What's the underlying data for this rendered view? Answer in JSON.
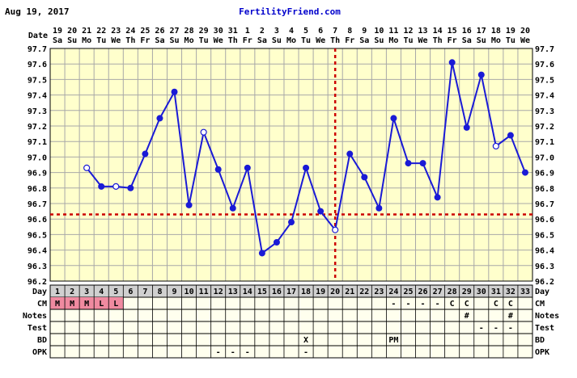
{
  "header": {
    "date": "Aug 19, 2017",
    "site": "FertilityFriend.com"
  },
  "row_labels": {
    "date": "Date",
    "day": "Day",
    "cm": "CM",
    "notes": "Notes",
    "test": "Test",
    "bd": "BD",
    "opk": "OPK"
  },
  "colors": {
    "plot_bg": "#ffffcc",
    "grid": "#a8a8a8",
    "line": "#1a1ad6",
    "coverline": "#cc0000",
    "ovulation_line": "#cc0000",
    "day_row_bg": "#d0d0d0",
    "menses_bg": "#f08aa0",
    "table_bg": "#ffffee"
  },
  "chart_data": {
    "type": "line",
    "title": "",
    "xlabel": "",
    "ylabel": "",
    "ylim": [
      96.2,
      97.7
    ],
    "yticks": [
      "97.7",
      "97.6",
      "97.5",
      "97.4",
      "97.3",
      "97.2",
      "97.1",
      "97.0",
      "96.9",
      "96.8",
      "96.7",
      "96.6",
      "96.5",
      "96.4",
      "96.3",
      "96.2"
    ],
    "grid": true,
    "dates": [
      "19",
      "20",
      "21",
      "22",
      "23",
      "24",
      "25",
      "26",
      "27",
      "28",
      "29",
      "30",
      "31",
      "1",
      "2",
      "3",
      "4",
      "5",
      "6",
      "7",
      "8",
      "9",
      "10",
      "11",
      "12",
      "13",
      "14",
      "15",
      "16",
      "17",
      "18",
      "19",
      "20"
    ],
    "weekdays": [
      "Sa",
      "Su",
      "Mo",
      "Tu",
      "We",
      "Th",
      "Fr",
      "Sa",
      "Su",
      "Mo",
      "Tu",
      "We",
      "Th",
      "Fr",
      "Sa",
      "Su",
      "Mo",
      "Tu",
      "We",
      "Th",
      "Fr",
      "Sa",
      "Su",
      "Mo",
      "Tu",
      "We",
      "Th",
      "Fr",
      "Sa",
      "Su",
      "Mo",
      "Tu",
      "We"
    ],
    "cycle_days": [
      "1",
      "2",
      "3",
      "4",
      "5",
      "6",
      "7",
      "8",
      "9",
      "10",
      "11",
      "12",
      "13",
      "14",
      "15",
      "16",
      "17",
      "18",
      "19",
      "20",
      "21",
      "22",
      "23",
      "24",
      "25",
      "26",
      "27",
      "28",
      "29",
      "30",
      "31",
      "32",
      "33"
    ],
    "series": [
      {
        "values": [
          null,
          null,
          96.93,
          96.81,
          96.81,
          96.8,
          97.02,
          97.25,
          97.42,
          96.69,
          97.16,
          96.92,
          96.67,
          96.93,
          96.38,
          96.45,
          96.58,
          96.93,
          96.65,
          96.53,
          97.02,
          96.87,
          96.67,
          97.25,
          96.96,
          96.96,
          96.74,
          97.61,
          97.19,
          97.53,
          97.07,
          97.14,
          96.9
        ],
        "open_markers": [
          3,
          5,
          11,
          20,
          31
        ]
      }
    ],
    "coverline": 96.63,
    "ovulation_day": 20
  },
  "table_rows": {
    "cm": [
      "M",
      "M",
      "M",
      "L",
      "L",
      "",
      "",
      "",
      "",
      "",
      "",
      "",
      "",
      "",
      "",
      "",
      "",
      "",
      "",
      "",
      "",
      "",
      "",
      "-",
      "-",
      "-",
      "-",
      "C",
      "C",
      "",
      "C",
      "C",
      ""
    ],
    "notes": [
      "",
      "",
      "",
      "",
      "",
      "",
      "",
      "",
      "",
      "",
      "",
      "",
      "",
      "",
      "",
      "",
      "",
      "",
      "",
      "",
      "",
      "",
      "",
      "",
      "",
      "",
      "",
      "",
      "#",
      "",
      "",
      "#",
      ""
    ],
    "test": [
      "",
      "",
      "",
      "",
      "",
      "",
      "",
      "",
      "",
      "",
      "",
      "",
      "",
      "",
      "",
      "",
      "",
      "",
      "",
      "",
      "",
      "",
      "",
      "",
      "",
      "",
      "",
      "",
      "",
      "-",
      "-",
      "-",
      ""
    ],
    "bd": [
      "",
      "",
      "",
      "",
      "",
      "",
      "",
      "",
      "",
      "",
      "",
      "",
      "",
      "",
      "",
      "",
      "",
      "X",
      "",
      "",
      "",
      "",
      "",
      "PM",
      "",
      "",
      "",
      "",
      "",
      "",
      "",
      "",
      ""
    ],
    "opk": [
      "",
      "",
      "",
      "",
      "",
      "",
      "",
      "",
      "",
      "",
      "",
      "-",
      "-",
      "-",
      "",
      "",
      "",
      "-",
      "",
      "",
      "",
      "",
      "",
      "",
      "",
      "",
      "",
      "",
      "",
      "",
      "",
      "",
      ""
    ]
  }
}
